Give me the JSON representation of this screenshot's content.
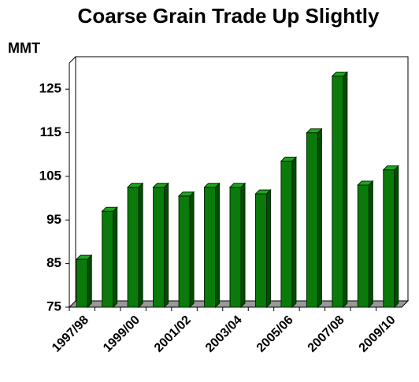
{
  "chart_data": {
    "type": "bar",
    "title": "Coarse Grain Trade Up Slightly",
    "y_label": "MMT",
    "categories": [
      "1997/98",
      null,
      "1999/00",
      null,
      "2001/02",
      null,
      "2003/04",
      null,
      "2005/06",
      null,
      "2007/08",
      null,
      "2009/10"
    ],
    "values": [
      86,
      97,
      102.5,
      102.5,
      100.5,
      102.5,
      102.5,
      101,
      108.5,
      115,
      128,
      103,
      106.5
    ],
    "color": "#0a7a0a",
    "ylim": [
      75,
      131
    ],
    "yticks": [
      75,
      85,
      95,
      105,
      115,
      125
    ],
    "grid": false
  }
}
